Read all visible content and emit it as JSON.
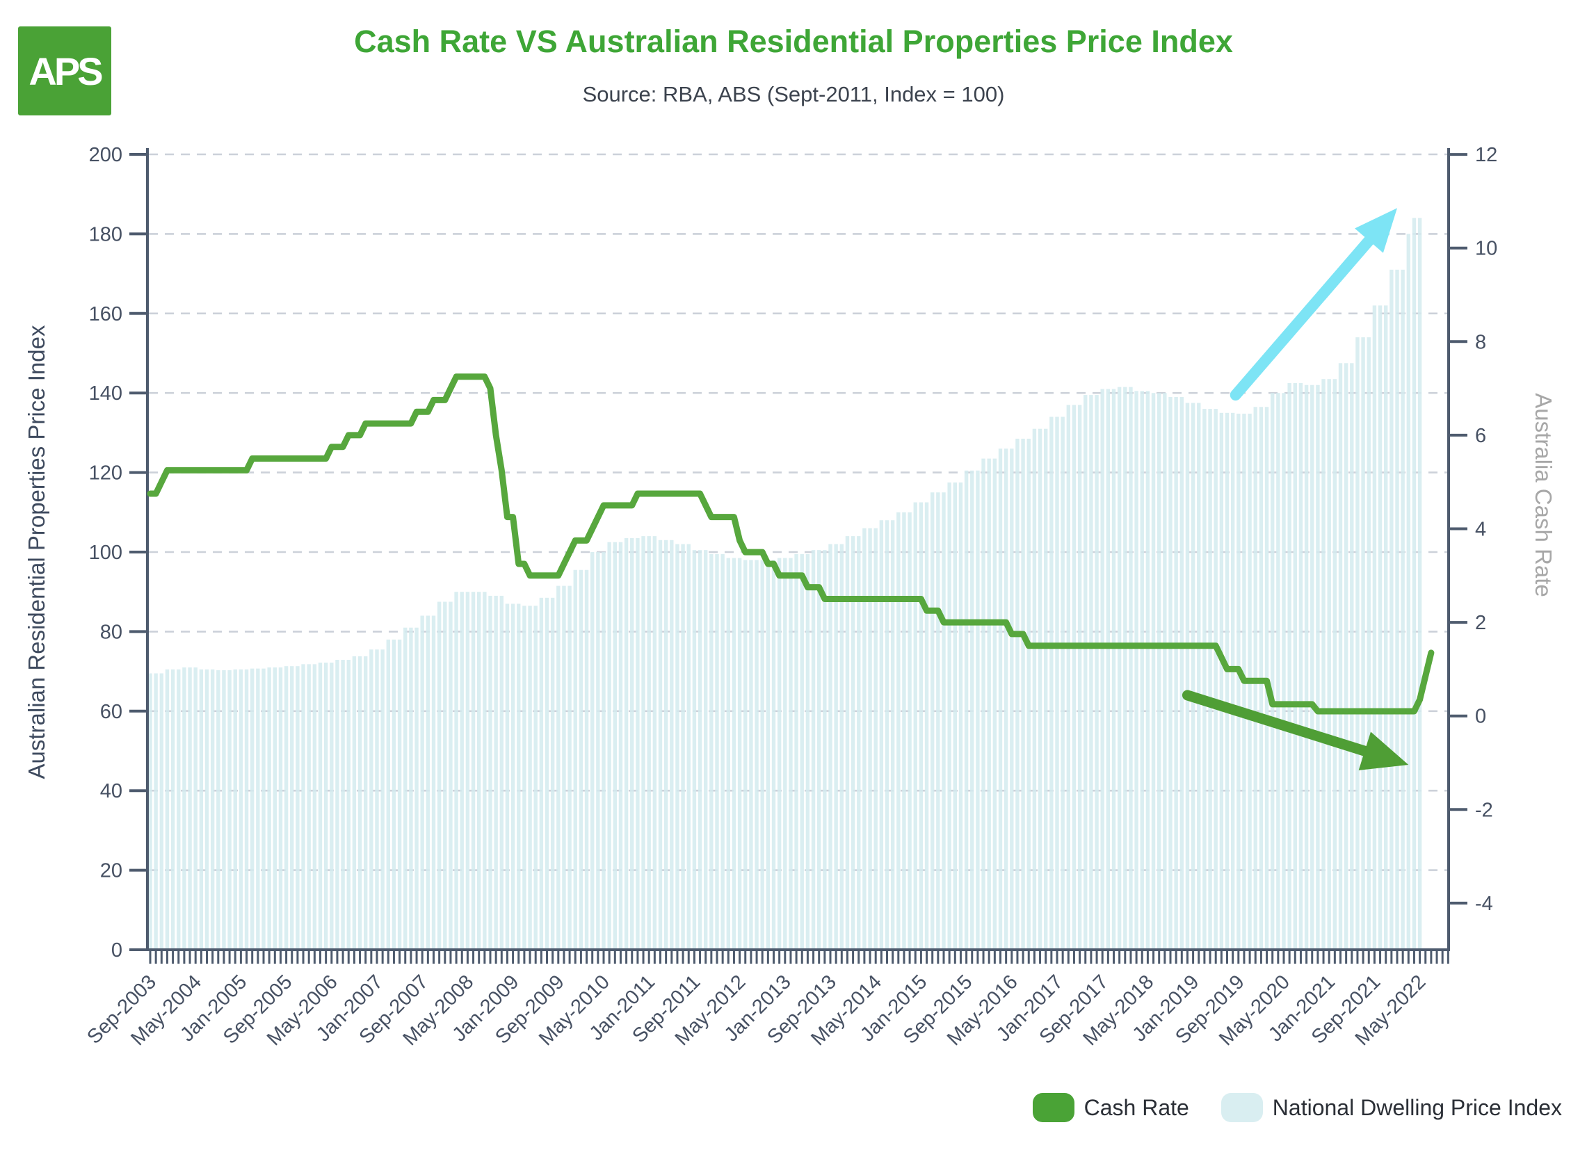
{
  "header": {
    "logo_text": "APS",
    "title": "Cash Rate VS Australian Residential Properties Price Index",
    "subtitle": "Source: RBA, ABS (Sept-2011, Index = 100)"
  },
  "legend": [
    {
      "label": "Cash Rate",
      "color": "#4aa336"
    },
    {
      "label": "National Dwelling Price Index",
      "color": "#d9eef1"
    }
  ],
  "colors": {
    "title_green": "#3ea636",
    "line_green": "#57a73d",
    "bar_fill": "#d3ebee",
    "axis_slate": "#4e5b6e",
    "tick_label": "#475163",
    "gridline": "#ccd1d9",
    "right_axis_title": "#a7a7a7",
    "cyan_arrow": "#7de4f5",
    "green_arrow": "#4f9e35"
  },
  "chart_data": {
    "type": "bar+line",
    "title": "Cash Rate VS Australian Residential Properties Price Index",
    "x_unit": "month",
    "x_start_label": "Sep-2003",
    "x_end_label": "May-2022",
    "months_total": 225,
    "x_tick_interval_months": 8,
    "x_tick_labels": [
      "Sep-2003",
      "May-2004",
      "Jan-2005",
      "Sep-2005",
      "May-2006",
      "Jan-2007",
      "Sep-2007",
      "May-2008",
      "Jan-2009",
      "Sep-2009",
      "May-2010",
      "Jan-2011",
      "Sep-2011",
      "May-2012",
      "Jan-2013",
      "Sep-2013",
      "May-2014",
      "Jan-2015",
      "Sep-2015",
      "May-2016",
      "Jan-2017",
      "Sep-2017",
      "May-2018",
      "Jan-2019",
      "Sep-2019",
      "May-2020",
      "Jan-2021",
      "Sep-2021",
      "May-2022"
    ],
    "left_axis": {
      "title": "Australian Residential Properties Price Index",
      "min": 0,
      "max": 200,
      "tick_step": 20,
      "grid": "dashed"
    },
    "right_axis": {
      "title": "Australia Cash Rate",
      "min": -4,
      "max": 12,
      "tick_step": 2
    },
    "bar_series": {
      "name": "National Dwelling Price Index",
      "axis": "left",
      "monthly_values": [
        69.5,
        69.5,
        69.5,
        70.5,
        70.5,
        70.5,
        71,
        71,
        71,
        70.5,
        70.5,
        70.5,
        70.3,
        70.3,
        70.3,
        70.5,
        70.5,
        70.5,
        70.7,
        70.7,
        70.7,
        71,
        71,
        71,
        71.3,
        71.3,
        71.3,
        71.8,
        71.8,
        71.8,
        72.2,
        72.2,
        72.2,
        72.9,
        72.9,
        72.9,
        73.8,
        73.8,
        73.8,
        75.5,
        75.5,
        75.5,
        78,
        78,
        78,
        81,
        81,
        81,
        84,
        84,
        84,
        87.5,
        87.5,
        87.5,
        90,
        90,
        90,
        90,
        90,
        90,
        89,
        89,
        89,
        87,
        87,
        87,
        86.5,
        86.5,
        86.5,
        88.5,
        88.5,
        88.5,
        91.5,
        91.5,
        91.5,
        95.5,
        95.5,
        95.5,
        100,
        100,
        100,
        102.5,
        102.5,
        102.5,
        103.5,
        103.5,
        103.5,
        104,
        104,
        104,
        103,
        103,
        103,
        102,
        102,
        102,
        100.5,
        100.5,
        100.5,
        99.5,
        99.5,
        99.5,
        98.5,
        98.5,
        98.5,
        98,
        98,
        98,
        98,
        98,
        98,
        98.5,
        98.5,
        98.5,
        99.5,
        99.5,
        99.5,
        100.5,
        100.5,
        100.5,
        102,
        102,
        102,
        104,
        104,
        104,
        106,
        106,
        106,
        108,
        108,
        108,
        110,
        110,
        110,
        112.5,
        112.5,
        112.5,
        115,
        115,
        115,
        117.5,
        117.5,
        117.5,
        120.5,
        120.5,
        120.5,
        123.5,
        123.5,
        123.5,
        126,
        126,
        126,
        128.5,
        128.5,
        128.5,
        131,
        131,
        131,
        134,
        134,
        134,
        137,
        137,
        137,
        139.5,
        139.5,
        139.5,
        141,
        141,
        141,
        141.5,
        141.5,
        141.5,
        140.5,
        140.5,
        140.5,
        140,
        140,
        140,
        139,
        139,
        139,
        137.5,
        137.5,
        137.5,
        136,
        136,
        136,
        135,
        135,
        135,
        134.8,
        134.8,
        134.8,
        136.5,
        136.5,
        136.5,
        140,
        140,
        140,
        142.5,
        142.5,
        142.5,
        142,
        142,
        142,
        143.5,
        143.5,
        143.5,
        147.5,
        147.5,
        147.5,
        154,
        154,
        154,
        162,
        162,
        162,
        171,
        171,
        171,
        180,
        184,
        184
      ]
    },
    "line_series": {
      "name": "Cash Rate",
      "axis": "right",
      "note": "runs are [rate_percent, number_of_months], Sep-2003 through Jul-2022",
      "runs": [
        [
          4.75,
          2
        ],
        [
          5,
          1
        ],
        [
          5.25,
          15
        ],
        [
          5.5,
          14
        ],
        [
          5.75,
          3
        ],
        [
          6,
          3
        ],
        [
          6.25,
          9
        ],
        [
          6.5,
          3
        ],
        [
          6.75,
          3
        ],
        [
          7,
          1
        ],
        [
          7.25,
          6
        ],
        [
          7,
          1
        ],
        [
          6,
          1
        ],
        [
          5.25,
          1
        ],
        [
          4.25,
          2
        ],
        [
          3.25,
          2
        ],
        [
          3,
          6
        ],
        [
          3.25,
          1
        ],
        [
          3.5,
          1
        ],
        [
          3.75,
          3
        ],
        [
          4,
          1
        ],
        [
          4.25,
          1
        ],
        [
          4.5,
          6
        ],
        [
          4.75,
          12
        ],
        [
          4.5,
          1
        ],
        [
          4.25,
          5
        ],
        [
          3.75,
          1
        ],
        [
          3.5,
          4
        ],
        [
          3.25,
          2
        ],
        [
          3,
          5
        ],
        [
          2.75,
          3
        ],
        [
          2.5,
          18
        ],
        [
          2.25,
          3
        ],
        [
          2,
          12
        ],
        [
          1.75,
          3
        ],
        [
          1.5,
          34
        ],
        [
          1.25,
          1
        ],
        [
          1,
          3
        ],
        [
          0.75,
          5
        ],
        [
          0.25,
          8
        ],
        [
          0.1,
          18
        ],
        [
          0.35,
          1
        ],
        [
          0.85,
          1
        ],
        [
          1.35,
          1
        ]
      ]
    },
    "annotations": [
      {
        "name": "surge-arrow",
        "shape": "arrow",
        "color": "#7de4f5",
        "from": {
          "month": 191.5,
          "left_value": 139.5
        },
        "to": {
          "month": 220,
          "left_value": 186.5
        }
      },
      {
        "name": "decline-arrow",
        "shape": "arrow",
        "color": "#4f9e35",
        "from": {
          "month": 183,
          "left_value": 64
        },
        "to": {
          "month": 222,
          "left_value": 46.5
        }
      }
    ]
  }
}
